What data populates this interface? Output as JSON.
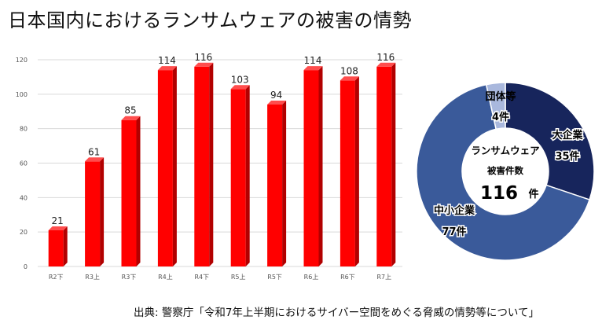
{
  "page": {
    "title": "日本国内におけるランサムウェアの被害の情勢",
    "source": "出典: 警察庁「令和7年上半期におけるサイバー空間をめぐる脅威の情勢等について」"
  },
  "chart_data": [
    {
      "type": "bar",
      "categories": [
        "R2下",
        "R3上",
        "R3下",
        "R4上",
        "R4下",
        "R5上",
        "R5下",
        "R6上",
        "R6下",
        "R7上"
      ],
      "values": [
        21,
        61,
        85,
        114,
        116,
        103,
        94,
        114,
        108,
        116
      ],
      "ylim": [
        0,
        120
      ],
      "yticks": [
        0,
        20,
        40,
        60,
        80,
        100,
        120
      ],
      "grid": true,
      "bar_color": "#ff0000",
      "bar_side_color": "#b20000",
      "bar_top_color": "#ff4d4d"
    },
    {
      "type": "pie",
      "donut": true,
      "slices": [
        {
          "label": "大企業",
          "value_label": "35件",
          "value": 35,
          "color": "#17255c"
        },
        {
          "label": "中小企業",
          "value_label": "77件",
          "value": 77,
          "color": "#3a5a9a"
        },
        {
          "label": "団体等",
          "value_label": "4件",
          "value": 4,
          "color": "#a9b8dd"
        }
      ],
      "center": {
        "line1": "ランサムウェア",
        "line2": "被害件数",
        "total": "116",
        "unit": "件"
      }
    }
  ]
}
